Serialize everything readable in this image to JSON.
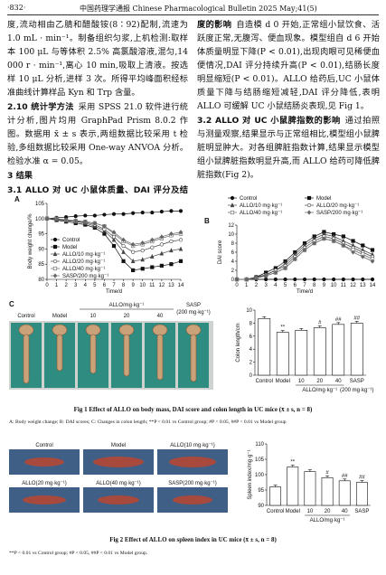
{
  "header": {
    "page": "·832·",
    "journal": "中国药理学通报  Chinese Pharmacological Bulletin  2025 May;41(5)"
  },
  "left_column": [
    {
      "text": "度,流动相由乙腈和醋酸铵(8∶92)配制,流速为 1.0 mL · min⁻¹。制备组织匀浆,上机检测:取样本 100 μL 与等体积 2.5% 高氯酸溶液,混匀,14 000 r · min⁻¹,离心 10 min,吸取上清液。按选样 10 μL 分析,进样 3 次。所得平均峰面积经标准曲线计算样品 Kyn 和 Trp 含量。"
    },
    {
      "heading": "2.10 统计学方法",
      "text": "采用 SPSS 21.0 软件进行统计分析,图片均用 GraphPad Prism 8.0.2 作图。数据用 x̄ ± s 表示,两组数据比较采用 t 检验,多组数据比较采用 One-way ANVOA 分析。检验水准 α = 0.05。"
    },
    {
      "heading": "3 结果"
    },
    {
      "heading": "3.1 ALLO 对 UC 小鼠体质量、DAI 评分及结肠长"
    }
  ],
  "right_column": [
    {
      "heading": "度的影响",
      "text": "自造模 d 0 开始,正常组小鼠饮食、活跃度正常,无腹泻、便血现象。模型组自 d 6 开始体质量明显下降(P < 0.01),出现肉眼可见稀便血便情况,DAI 评分持续升高(P < 0.01),结肠长度明显缩短(P < 0.01)。ALLO 给药后,UC 小鼠体质量下降与结肠缩短减轻,DAI 评分降低,表明 ALLO 可缓解 UC 小鼠结肠炎表现,见 Fig 1。"
    },
    {
      "heading": "3.2 ALLO 对 UC 小鼠脾指数的影响",
      "text": "通过拍照与测量观察,结果显示与正常组相比,模型组小鼠脾脏明显肿大。对各组脾脏指数计算,结果显示模型组小鼠脾脏指数明显升高,而 ALLO 给药可降低脾脏指数(Fig 2)。"
    }
  ],
  "figure1": {
    "panel_a": {
      "label": "A",
      "type": "line",
      "y_label": "Body weight change/%",
      "x_label": "Time/d",
      "x": [
        0,
        1,
        2,
        3,
        4,
        5,
        6,
        7,
        8,
        9,
        10,
        11,
        12,
        13,
        14
      ],
      "xlim": [
        0,
        14
      ],
      "xticks": [
        0,
        1,
        2,
        3,
        4,
        5,
        6,
        7,
        8,
        9,
        10,
        11,
        12,
        13,
        14
      ],
      "ylim": [
        80,
        105
      ],
      "yticks": [
        80,
        85,
        90,
        95,
        100,
        105
      ],
      "legend": "lower left",
      "series": [
        {
          "name": "Control",
          "color": "#111111",
          "marker": "circle",
          "values": [
            100,
            100.3,
            100.5,
            100.8,
            101,
            101,
            101.3,
            101.5,
            101.5,
            101.8,
            102,
            102,
            102.3,
            102.5,
            102.5
          ]
        },
        {
          "name": "Model",
          "color": "#111111",
          "marker": "square",
          "values": [
            100,
            99.5,
            99,
            98.5,
            98,
            97,
            95,
            91,
            86,
            83,
            83.5,
            84,
            84.5,
            85,
            86
          ]
        },
        {
          "name": "ALLO/10 mg·kg⁻¹",
          "color": "#444444",
          "marker": "triangle",
          "values": [
            100,
            99.8,
            99.3,
            99,
            98.5,
            97.5,
            96,
            93,
            89,
            86,
            86.5,
            87.5,
            88.5,
            89.5,
            90
          ]
        },
        {
          "name": "ALLO/20 mg·kg⁻¹",
          "color": "#444444",
          "marker": "open-circle",
          "values": [
            100,
            99.8,
            99.5,
            99,
            98.8,
            98,
            96.5,
            94,
            91,
            89,
            89.5,
            90.5,
            91.5,
            92.5,
            93
          ]
        },
        {
          "name": "ALLO/40 mg·kg⁻¹",
          "color": "#666666",
          "marker": "open-square",
          "values": [
            100,
            100,
            99.5,
            99.3,
            99,
            98.5,
            97.5,
            95,
            92.5,
            91,
            91.5,
            92.5,
            93.5,
            94.5,
            95
          ]
        },
        {
          "name": "SASP/200 mg·kg⁻¹",
          "color": "#666666",
          "marker": "diamond",
          "values": [
            100,
            100,
            99.6,
            99.3,
            99,
            98.5,
            97.5,
            95.5,
            93,
            91.5,
            92,
            93,
            94,
            95,
            95.5
          ]
        }
      ]
    },
    "panel_b": {
      "label": "B",
      "type": "line",
      "y_label": "DAI score",
      "x_label": "Time/d",
      "x": [
        0,
        1,
        2,
        3,
        4,
        5,
        6,
        7,
        8,
        9,
        10,
        11,
        12,
        13,
        14
      ],
      "xlim": [
        0,
        14
      ],
      "xticks": [
        0,
        1,
        2,
        3,
        4,
        5,
        6,
        7,
        8,
        9,
        10,
        11,
        12,
        13,
        14
      ],
      "ylim": [
        0,
        12
      ],
      "yticks": [
        0,
        2,
        4,
        6,
        8,
        10,
        12
      ],
      "legend": "top",
      "series": [
        {
          "name": "Control",
          "color": "#111111",
          "marker": "circle",
          "values": [
            0,
            0,
            0,
            0,
            0,
            0,
            0,
            0,
            0,
            0,
            0,
            0,
            0,
            0,
            0
          ]
        },
        {
          "name": "Model",
          "color": "#111111",
          "marker": "square",
          "values": [
            0,
            0,
            0.5,
            1.5,
            2.5,
            4,
            6,
            8,
            9.5,
            10.5,
            10,
            9.5,
            8.5,
            7.5,
            6.5
          ]
        },
        {
          "name": "ALLO/10 mg·kg⁻¹",
          "color": "#444444",
          "marker": "triangle",
          "values": [
            0,
            0,
            0.5,
            1,
            2,
            3.5,
            5.5,
            7.5,
            9,
            10,
            9.5,
            8.5,
            7.5,
            6.5,
            5.5
          ]
        },
        {
          "name": "ALLO/20 mg·kg⁻¹",
          "color": "#444444",
          "marker": "open-circle",
          "values": [
            0,
            0,
            0.3,
            1,
            2,
            3,
            5,
            7,
            8.5,
            9.5,
            9,
            8,
            7,
            6,
            5
          ]
        },
        {
          "name": "ALLO/40 mg·kg⁻¹",
          "color": "#666666",
          "marker": "open-square",
          "values": [
            0,
            0,
            0.3,
            0.8,
            1.5,
            2.5,
            4.5,
            6.5,
            8,
            9,
            8.5,
            7.5,
            6.5,
            5.5,
            4.5
          ]
        },
        {
          "name": "SASP/200 mg·kg⁻¹",
          "color": "#666666",
          "marker": "diamond",
          "values": [
            0,
            0,
            0.3,
            0.8,
            1.5,
            2.5,
            4.5,
            6.5,
            8,
            9,
            8.5,
            7.5,
            6,
            5,
            4
          ]
        }
      ]
    },
    "panel_c": {
      "label": "C",
      "type": "bar",
      "y_label": "Colon length/cm",
      "photo_labels": [
        "Control",
        "Model",
        "ALLO/mg·kg⁻¹",
        "10",
        "20",
        "40",
        "SASP",
        "(200 mg·kg⁻¹)"
      ],
      "categories": [
        "Control",
        "Model",
        "10",
        "20",
        "40",
        "SASP"
      ],
      "group_label": "ALLO/mg·kg⁻¹",
      "dose_label": "(200 mg·kg⁻¹)",
      "values": [
        8.7,
        6.6,
        6.9,
        7.3,
        7.8,
        8.0
      ],
      "annotations": [
        null,
        "**",
        null,
        "#",
        "##",
        "##"
      ],
      "color": "#ffffff",
      "ylim": [
        0,
        10
      ],
      "yticks": [
        0,
        2,
        4,
        6,
        8,
        10
      ]
    },
    "caption": "Fig 1   Effect of ALLO on body mass, DAI score and colon length in UC mice (x̄ ± s, n = 8)",
    "note": "A: Body weight change; B: DAI scores; C: Changes in colon length; **P < 0.01 vs Control group; #P < 0.05, ##P < 0.01 vs Model group"
  },
  "figure2": {
    "photo_labels": [
      "Control",
      "Model",
      "ALLO(10 mg·kg⁻¹)",
      "ALLO(20 mg·kg⁻¹)",
      "ALLO(40 mg·kg⁻¹)",
      "SASP(200 mg·kg⁻¹)"
    ],
    "chart": {
      "type": "bar",
      "y_label": "Spleen index/mg·g⁻¹",
      "categories": [
        "Control",
        "Model",
        "10",
        "20",
        "40",
        "SASP"
      ],
      "group_label": "ALLO/mg·kg⁻¹",
      "values": [
        96,
        102.5,
        101,
        99,
        98,
        97.5
      ],
      "annotations": [
        null,
        "**",
        null,
        "#",
        "##",
        "##"
      ],
      "color": "#ffffff",
      "ylim": [
        90,
        110
      ],
      "yticks": [
        90,
        95,
        100,
        105,
        110
      ]
    },
    "caption": "Fig 2   Effect of ALLO on spleen index in UC mice (x̄ ± s, n = 8)",
    "note": "**P < 0.01 vs Control group; #P < 0.05, ##P < 0.01 vs Model group."
  }
}
